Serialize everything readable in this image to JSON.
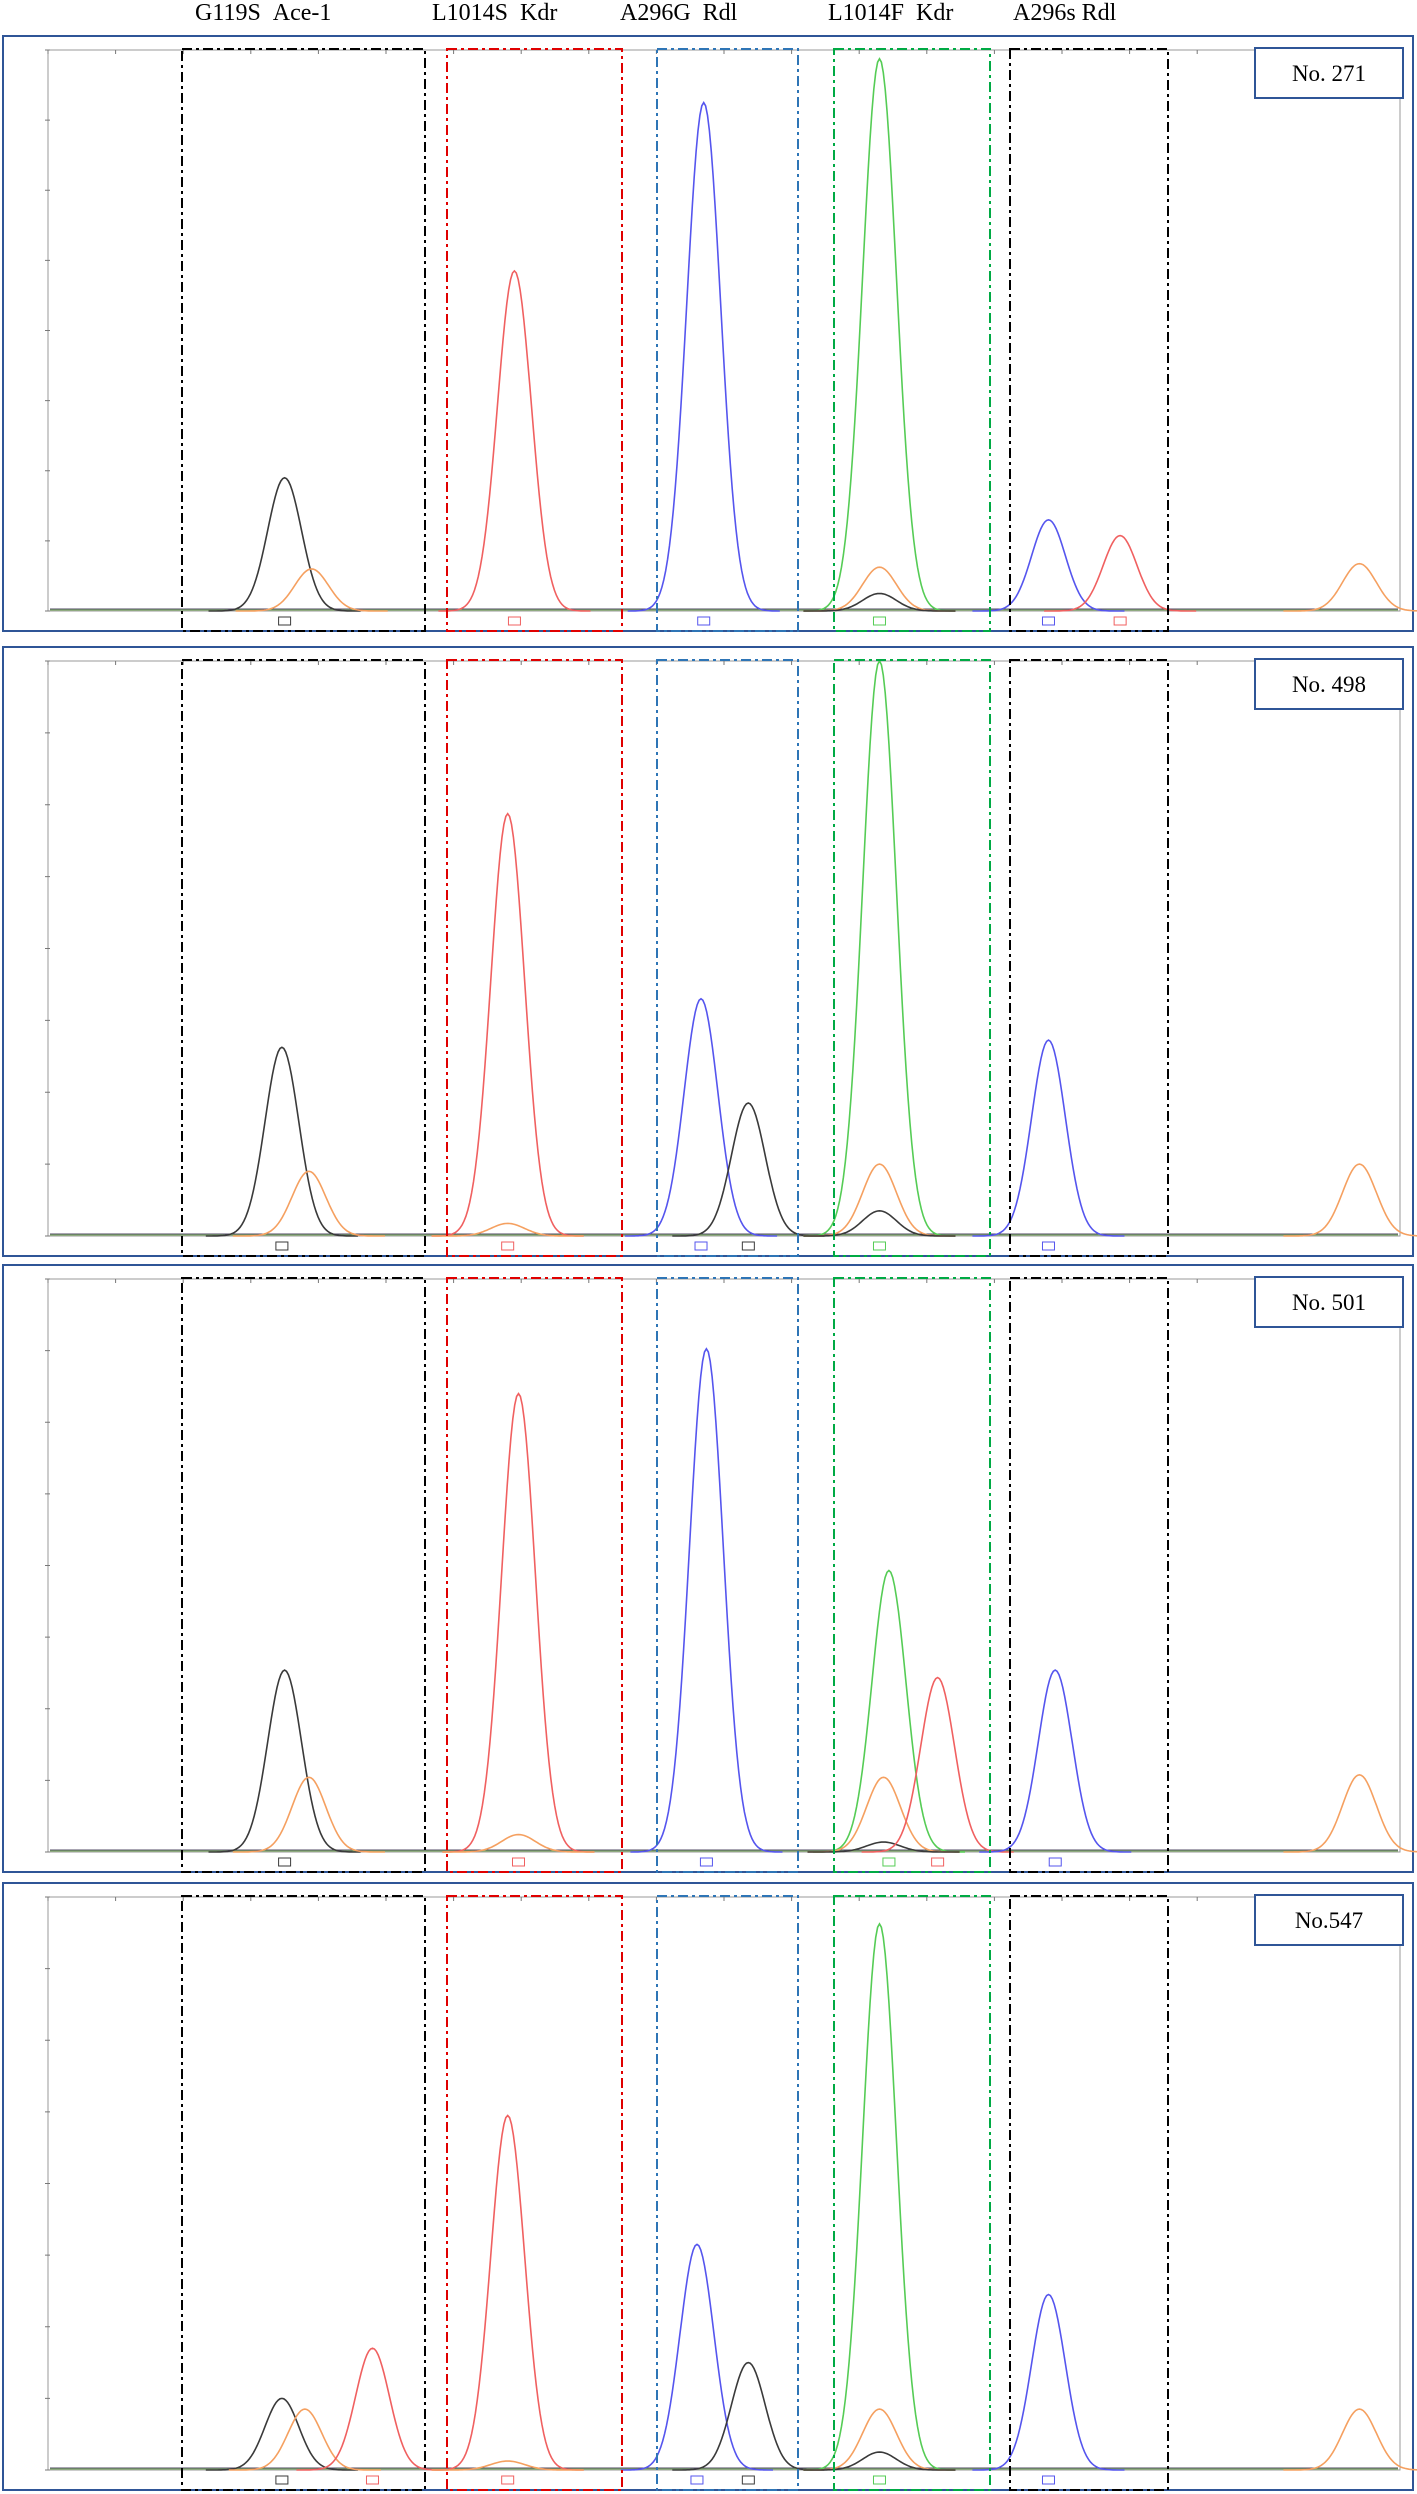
{
  "header_labels": [
    {
      "mutation": "G119S",
      "gene": "Ace-1"
    },
    {
      "mutation": "L1014S",
      "gene": "Kdr"
    },
    {
      "mutation": "A296G",
      "gene": "Rdl"
    },
    {
      "mutation": "L1014F",
      "gene": "Kdr"
    },
    {
      "mutation": "A296s",
      "gene": "Rdl"
    }
  ],
  "colors": {
    "frame": "#2f5597",
    "black": "#3a3a3a",
    "red": "#f06060",
    "blue": "#5555ee",
    "green": "#55cc55",
    "orange": "#f5a060",
    "region_ace1": "#000000",
    "region_kdr_s": "#e00000",
    "region_rdl_g": "#2e75b6",
    "region_kdr_f": "#00aa44",
    "region_rdl_s": "#000000"
  },
  "chart_data": [
    {
      "type": "line",
      "sample_label": "No. 271",
      "ylim": [
        0,
        32000
      ],
      "xlim": [
        0,
        100
      ],
      "peaks": [
        {
          "color": "black",
          "x": 17.5,
          "height": 7600
        },
        {
          "color": "orange",
          "x": 19.5,
          "height": 2400
        },
        {
          "color": "red",
          "x": 34.5,
          "height": 19400
        },
        {
          "color": "blue",
          "x": 48.5,
          "height": 29000
        },
        {
          "color": "green",
          "x": 61.5,
          "height": 31500
        },
        {
          "color": "orange",
          "x": 61.5,
          "height": 2500
        },
        {
          "color": "black",
          "x": 61.5,
          "height": 1000
        },
        {
          "color": "blue",
          "x": 74.0,
          "height": 5200
        },
        {
          "color": "red",
          "x": 79.3,
          "height": 4300
        },
        {
          "color": "orange",
          "x": 97.0,
          "height": 2700
        }
      ]
    },
    {
      "type": "line",
      "sample_label": "No. 498",
      "ylim": [
        0,
        32000
      ],
      "xlim": [
        0,
        100
      ],
      "peaks": [
        {
          "color": "black",
          "x": 17.3,
          "height": 10500
        },
        {
          "color": "orange",
          "x": 19.3,
          "height": 3600
        },
        {
          "color": "red",
          "x": 34.0,
          "height": 23500
        },
        {
          "color": "orange",
          "x": 34.0,
          "height": 700
        },
        {
          "color": "blue",
          "x": 48.3,
          "height": 13200
        },
        {
          "color": "black",
          "x": 51.8,
          "height": 7400
        },
        {
          "color": "green",
          "x": 61.5,
          "height": 32000
        },
        {
          "color": "orange",
          "x": 61.5,
          "height": 4000
        },
        {
          "color": "black",
          "x": 61.5,
          "height": 1400
        },
        {
          "color": "blue",
          "x": 74.0,
          "height": 10900
        },
        {
          "color": "orange",
          "x": 97.0,
          "height": 4000
        }
      ]
    },
    {
      "type": "line",
      "sample_label": "No. 501",
      "ylim": [
        0,
        23000
      ],
      "xlim": [
        0,
        100
      ],
      "peaks": [
        {
          "color": "black",
          "x": 17.5,
          "height": 7300
        },
        {
          "color": "orange",
          "x": 19.3,
          "height": 3000
        },
        {
          "color": "red",
          "x": 34.8,
          "height": 18400
        },
        {
          "color": "orange",
          "x": 34.8,
          "height": 700
        },
        {
          "color": "blue",
          "x": 48.7,
          "height": 20200
        },
        {
          "color": "green",
          "x": 62.2,
          "height": 11300
        },
        {
          "color": "orange",
          "x": 61.8,
          "height": 3000
        },
        {
          "color": "black",
          "x": 61.8,
          "height": 400
        },
        {
          "color": "red",
          "x": 65.8,
          "height": 7000
        },
        {
          "color": "blue",
          "x": 74.5,
          "height": 7300
        },
        {
          "color": "orange",
          "x": 97.0,
          "height": 3100
        }
      ]
    },
    {
      "type": "line",
      "sample_label": "No.547",
      "ylim": [
        0,
        32000
      ],
      "xlim": [
        0,
        100
      ],
      "peaks": [
        {
          "color": "black",
          "x": 17.3,
          "height": 4000
        },
        {
          "color": "orange",
          "x": 19.0,
          "height": 3400
        },
        {
          "color": "red",
          "x": 24.0,
          "height": 6800
        },
        {
          "color": "red",
          "x": 34.0,
          "height": 19800
        },
        {
          "color": "orange",
          "x": 34.0,
          "height": 500
        },
        {
          "color": "blue",
          "x": 48.0,
          "height": 12600
        },
        {
          "color": "black",
          "x": 51.8,
          "height": 6000
        },
        {
          "color": "green",
          "x": 61.5,
          "height": 30500
        },
        {
          "color": "orange",
          "x": 61.5,
          "height": 3400
        },
        {
          "color": "black",
          "x": 61.5,
          "height": 1000
        },
        {
          "color": "blue",
          "x": 74.0,
          "height": 9800
        },
        {
          "color": "orange",
          "x": 97.0,
          "height": 3400
        }
      ]
    }
  ]
}
